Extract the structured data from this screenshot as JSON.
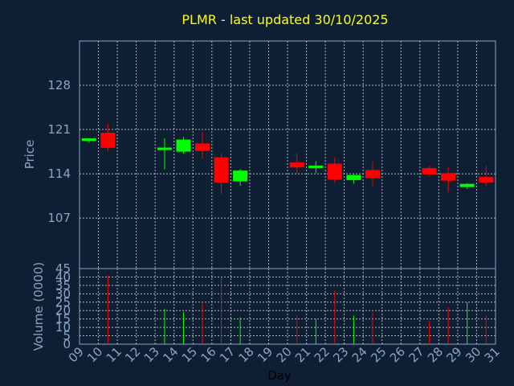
{
  "chart_data": [
    {
      "type": "candlestick",
      "title": "PLMR - last updated 30/10/2025",
      "ylabel": "Price",
      "ylim": [
        99,
        135
      ],
      "yticks": [
        107,
        114,
        121,
        128
      ],
      "up_color": "#00ff00",
      "down_color": "#ff0000",
      "candles": [
        {
          "day": 9,
          "open": 119.2,
          "high": 119.6,
          "low": 118.9,
          "close": 119.6
        },
        {
          "day": 10,
          "open": 120.5,
          "high": 121.9,
          "low": 117.6,
          "close": 118.1
        },
        {
          "day": 13,
          "open": 117.8,
          "high": 119.6,
          "low": 114.7,
          "close": 118.1
        },
        {
          "day": 14,
          "open": 117.5,
          "high": 119.8,
          "low": 117.2,
          "close": 119.4
        },
        {
          "day": 15,
          "open": 118.8,
          "high": 120.6,
          "low": 116.4,
          "close": 117.6
        },
        {
          "day": 16,
          "open": 116.6,
          "high": 117.2,
          "low": 110.8,
          "close": 112.6
        },
        {
          "day": 17,
          "open": 112.8,
          "high": 114.7,
          "low": 112.1,
          "close": 114.5
        },
        {
          "day": 20,
          "open": 115.8,
          "high": 117.2,
          "low": 114.0,
          "close": 115.0
        },
        {
          "day": 21,
          "open": 115.0,
          "high": 116.0,
          "low": 114.1,
          "close": 115.2
        },
        {
          "day": 22,
          "open": 115.6,
          "high": 116.6,
          "low": 112.6,
          "close": 113.1
        },
        {
          "day": 23,
          "open": 113.0,
          "high": 114.0,
          "low": 112.4,
          "close": 113.8
        },
        {
          "day": 24,
          "open": 114.6,
          "high": 115.9,
          "low": 112.1,
          "close": 113.3
        },
        {
          "day": 27,
          "open": 114.9,
          "high": 115.3,
          "low": 113.6,
          "close": 113.9
        },
        {
          "day": 28,
          "open": 114.1,
          "high": 115.0,
          "low": 111.1,
          "close": 112.9
        },
        {
          "day": 29,
          "open": 111.9,
          "high": 112.5,
          "low": 111.6,
          "close": 112.4
        },
        {
          "day": 30,
          "open": 113.5,
          "high": 115.2,
          "low": 112.1,
          "close": 112.6
        }
      ]
    },
    {
      "type": "bar",
      "ylabel": "Volume (0000)",
      "xlabel": "Day",
      "ylim": [
        0,
        45
      ],
      "yticks": [
        0,
        5,
        10,
        15,
        20,
        25,
        30,
        35,
        40,
        45
      ],
      "xticks": [
        "09",
        "10",
        "11",
        "12",
        "13",
        "14",
        "15",
        "16",
        "17",
        "18",
        "19",
        "20",
        "21",
        "22",
        "23",
        "24",
        "25",
        "26",
        "27",
        "28",
        "29",
        "30",
        "31"
      ],
      "bars": [
        {
          "day": 10,
          "value": 41,
          "direction": "down"
        },
        {
          "day": 13,
          "value": 21,
          "direction": "up"
        },
        {
          "day": 14,
          "value": 19,
          "direction": "up"
        },
        {
          "day": 15,
          "value": 25,
          "direction": "down"
        },
        {
          "day": 16,
          "value": 40,
          "direction": "down"
        },
        {
          "day": 17,
          "value": 16,
          "direction": "up"
        },
        {
          "day": 20,
          "value": 17,
          "direction": "down"
        },
        {
          "day": 21,
          "value": 15,
          "direction": "up"
        },
        {
          "day": 22,
          "value": 32,
          "direction": "down"
        },
        {
          "day": 23,
          "value": 17,
          "direction": "up"
        },
        {
          "day": 24,
          "value": 20,
          "direction": "down"
        },
        {
          "day": 27,
          "value": 14,
          "direction": "down"
        },
        {
          "day": 28,
          "value": 22,
          "direction": "down"
        },
        {
          "day": 29,
          "value": 25,
          "direction": "up"
        },
        {
          "day": 30,
          "value": 17,
          "direction": "down"
        }
      ]
    }
  ]
}
